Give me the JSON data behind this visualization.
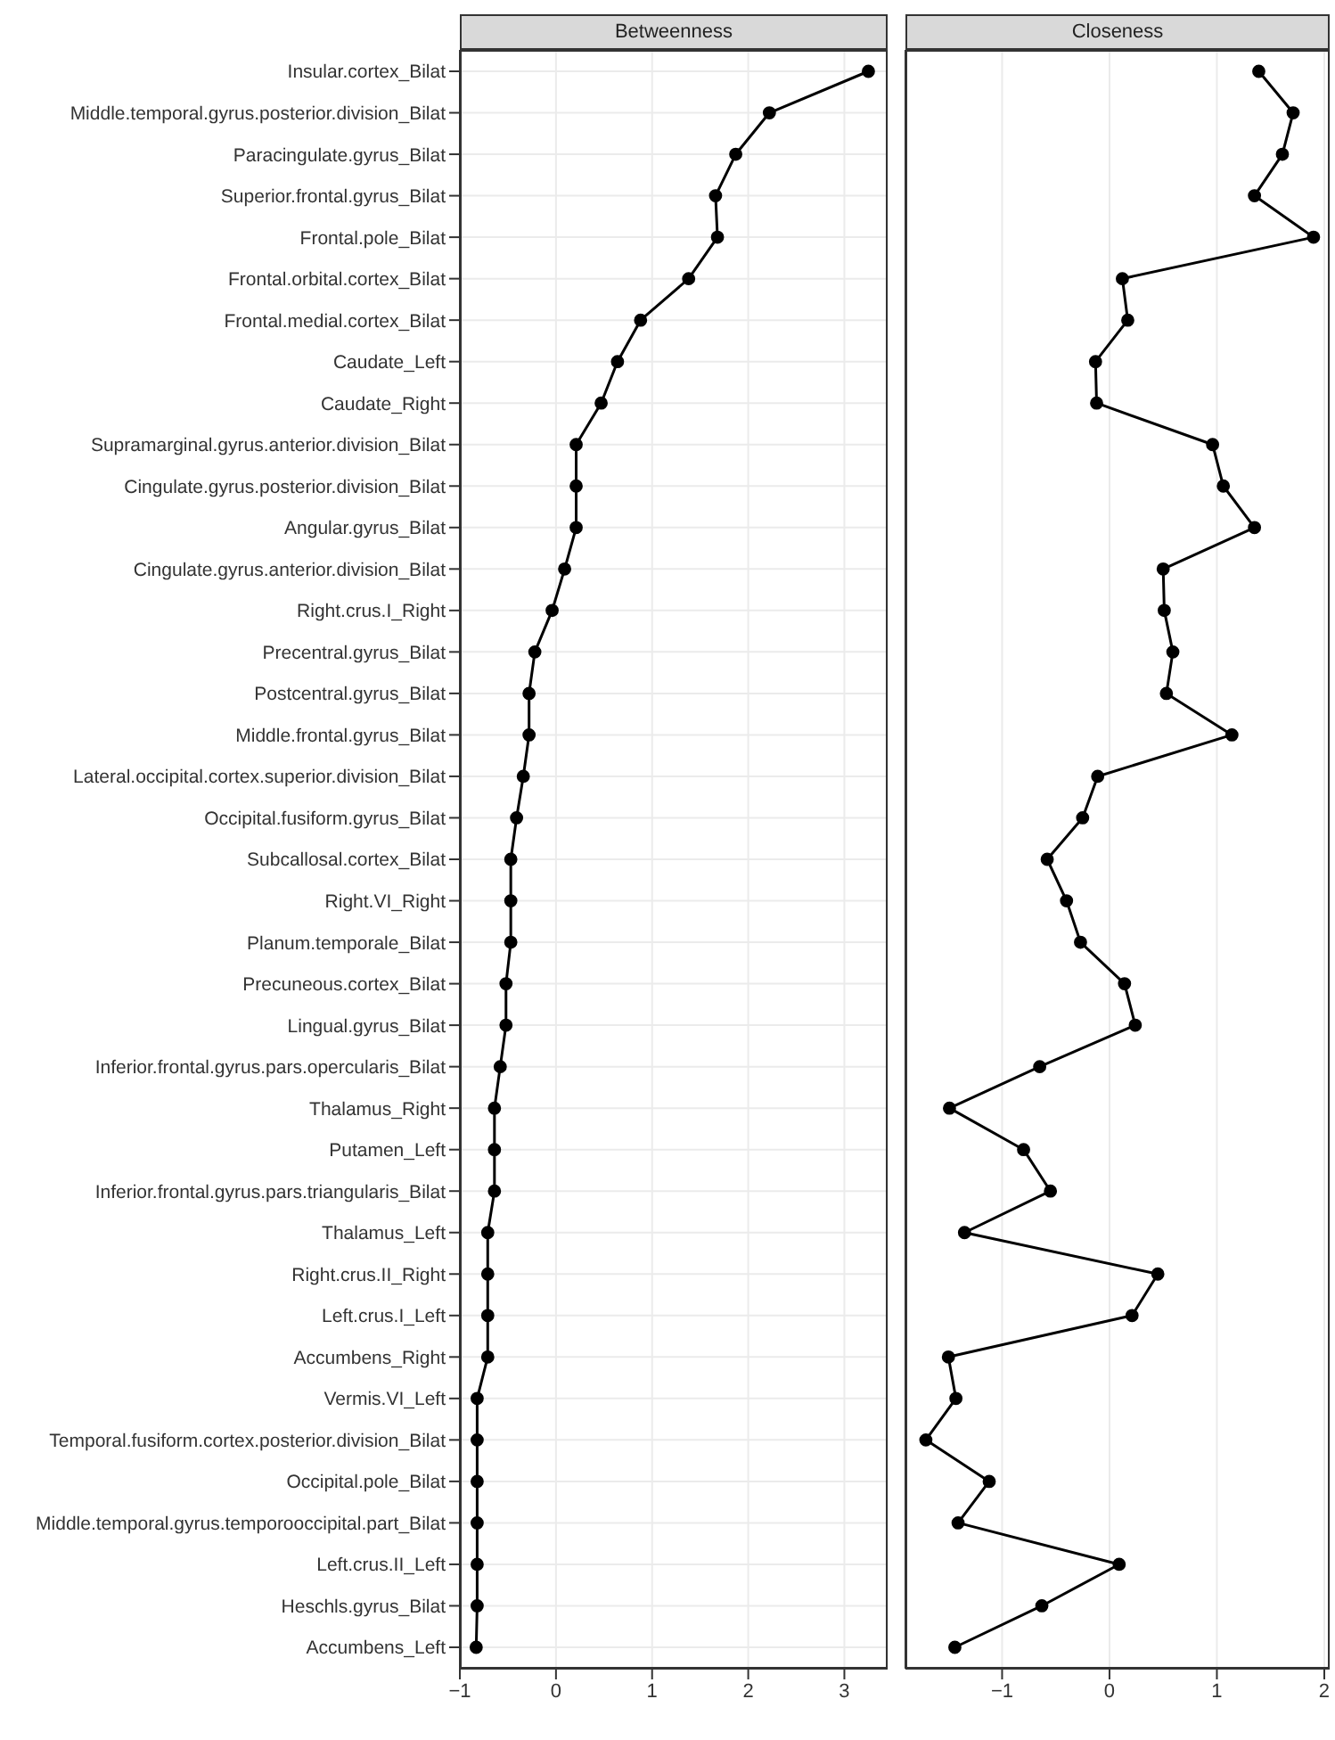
{
  "chart_data": [
    {
      "type": "line",
      "orientation": "horizontal",
      "title": "Betweenness",
      "categories": [
        "Insular.cortex_Bilat",
        "Middle.temporal.gyrus.posterior.division_Bilat",
        "Paracingulate.gyrus_Bilat",
        "Superior.frontal.gyrus_Bilat",
        "Frontal.pole_Bilat",
        "Frontal.orbital.cortex_Bilat",
        "Frontal.medial.cortex_Bilat",
        "Caudate_Left",
        "Caudate_Right",
        "Supramarginal.gyrus.anterior.division_Bilat",
        "Cingulate.gyrus.posterior.division_Bilat",
        "Angular.gyrus_Bilat",
        "Cingulate.gyrus.anterior.division_Bilat",
        "Right.crus.I_Right",
        "Precentral.gyrus_Bilat",
        "Postcentral.gyrus_Bilat",
        "Middle.frontal.gyrus_Bilat",
        "Lateral.occipital.cortex.superior.division_Bilat",
        "Occipital.fusiform.gyrus_Bilat",
        "Subcallosal.cortex_Bilat",
        "Right.VI_Right",
        "Planum.temporale_Bilat",
        "Precuneous.cortex_Bilat",
        "Lingual.gyrus_Bilat",
        "Inferior.frontal.gyrus.pars.opercularis_Bilat",
        "Thalamus_Right",
        "Putamen_Left",
        "Inferior.frontal.gyrus.pars.triangularis_Bilat",
        "Thalamus_Left",
        "Right.crus.II_Right",
        "Left.crus.I_Left",
        "Accumbens_Right",
        "Vermis.VI_Left",
        "Temporal.fusiform.cortex.posterior.division_Bilat",
        "Occipital.pole_Bilat",
        "Middle.temporal.gyrus.temporooccipital.part_Bilat",
        "Left.crus.II_Left",
        "Heschls.gyrus_Bilat",
        "Accumbens_Left"
      ],
      "series": [
        {
          "color": "#000000",
          "values": [
            3.25,
            2.22,
            1.87,
            1.66,
            1.68,
            1.38,
            0.88,
            0.64,
            0.47,
            0.21,
            0.21,
            0.21,
            0.09,
            -0.04,
            -0.22,
            -0.28,
            -0.28,
            -0.34,
            -0.41,
            -0.47,
            -0.47,
            -0.47,
            -0.52,
            -0.52,
            -0.58,
            -0.64,
            -0.64,
            -0.64,
            -0.71,
            -0.71,
            -0.71,
            -0.71,
            -0.82,
            -0.82,
            -0.82,
            -0.82,
            -0.82,
            -0.82,
            -0.83
          ]
        }
      ],
      "xlim": [
        -1,
        3.45
      ],
      "xticks": [
        -1,
        0,
        1,
        2,
        3
      ],
      "grid": true,
      "marker": "circle"
    },
    {
      "type": "line",
      "orientation": "horizontal",
      "title": "Closeness",
      "series": [
        {
          "color": "#000000",
          "values": [
            1.39,
            1.71,
            1.61,
            1.35,
            1.9,
            0.12,
            0.17,
            -0.13,
            -0.12,
            0.96,
            1.06,
            1.35,
            0.5,
            0.51,
            0.59,
            0.53,
            1.14,
            -0.11,
            -0.25,
            -0.58,
            -0.4,
            -0.27,
            0.14,
            0.24,
            -0.65,
            -1.49,
            -0.8,
            -0.55,
            -1.35,
            0.45,
            0.21,
            -1.5,
            -1.43,
            -1.71,
            -1.12,
            -1.41,
            0.09,
            -0.63,
            -1.44
          ]
        }
      ],
      "xlim": [
        -1.9,
        2.05
      ],
      "xticks": [
        -1,
        0,
        1,
        2
      ],
      "grid": true,
      "marker": "circle",
      "tick_labels": "x"
    }
  ]
}
